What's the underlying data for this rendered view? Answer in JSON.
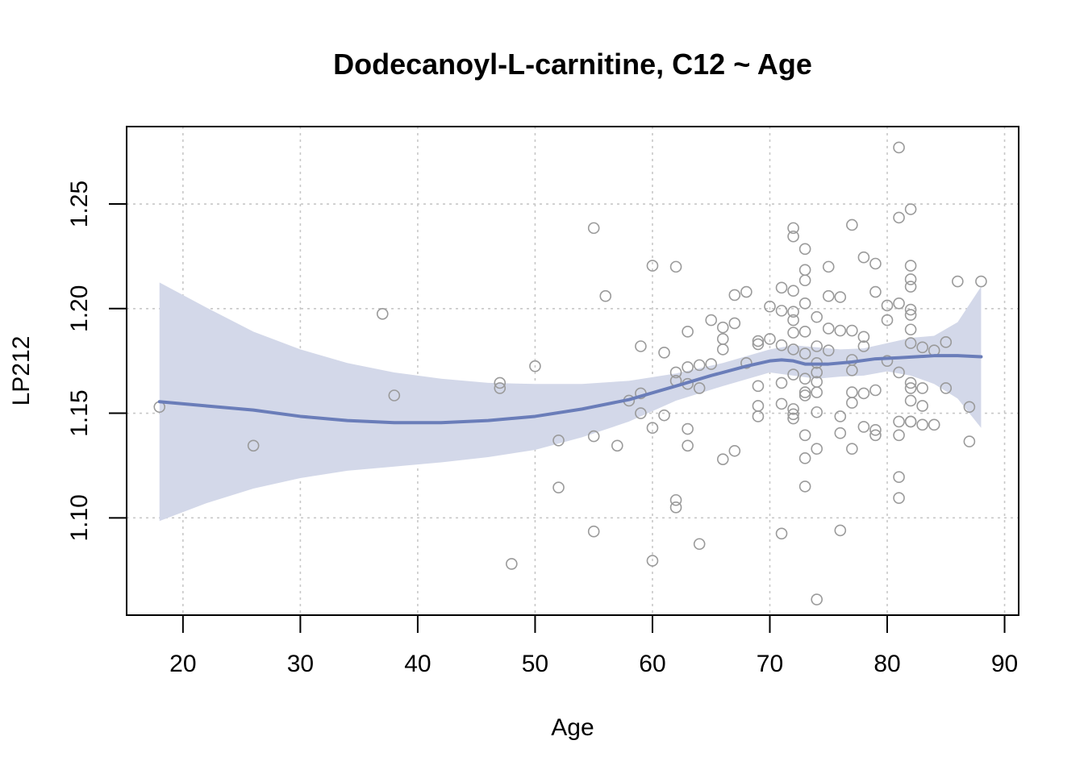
{
  "chart_data": {
    "type": "scatter",
    "title": "Dodecanoyl-L-carnitine, C12 ~ Age",
    "xlabel": "Age",
    "ylabel": "LP212",
    "xlim": [
      15.2,
      91.2
    ],
    "ylim": [
      1.0535,
      1.287
    ],
    "xticks": [
      20,
      30,
      40,
      50,
      60,
      70,
      80,
      90
    ],
    "yticks": [
      1.1,
      1.15,
      1.2,
      1.25
    ],
    "ytick_labels": [
      "1.10",
      "1.15",
      "1.20",
      "1.25"
    ],
    "grid": true,
    "legend": "none",
    "colors": {
      "points": "#9a9a9a",
      "fit_line": "#6a7db9",
      "confidence_band": "#d3d8e9",
      "grid": "#c8c8c8",
      "axis": "#000000"
    },
    "series": [
      {
        "type": "points",
        "points": [
          [
            18,
            1.153
          ],
          [
            26,
            1.1345
          ],
          [
            37,
            1.1975
          ],
          [
            38,
            1.1585
          ],
          [
            47,
            1.1645
          ],
          [
            47,
            1.162
          ],
          [
            48,
            1.078
          ],
          [
            50,
            1.1725
          ],
          [
            52,
            1.137
          ],
          [
            52,
            1.1145
          ],
          [
            55,
            1.2385
          ],
          [
            55,
            1.139
          ],
          [
            55,
            1.0935
          ],
          [
            56,
            1.206
          ],
          [
            57,
            1.1345
          ],
          [
            58,
            1.156
          ],
          [
            59,
            1.182
          ],
          [
            59,
            1.1595
          ],
          [
            59,
            1.15
          ],
          [
            60,
            1.2205
          ],
          [
            60,
            1.143
          ],
          [
            60,
            1.0795
          ],
          [
            61,
            1.179
          ],
          [
            61,
            1.149
          ],
          [
            62,
            1.22
          ],
          [
            62,
            1.1695
          ],
          [
            62,
            1.1655
          ],
          [
            62,
            1.1085
          ],
          [
            62,
            1.105
          ],
          [
            63,
            1.189
          ],
          [
            63,
            1.172
          ],
          [
            63,
            1.164
          ],
          [
            63,
            1.1425
          ],
          [
            63,
            1.1345
          ],
          [
            64,
            1.173
          ],
          [
            64,
            1.162
          ],
          [
            64,
            1.0875
          ],
          [
            65,
            1.1945
          ],
          [
            65,
            1.1735
          ],
          [
            66,
            1.191
          ],
          [
            66,
            1.1855
          ],
          [
            66,
            1.1805
          ],
          [
            66,
            1.128
          ],
          [
            67,
            1.2065
          ],
          [
            67,
            1.193
          ],
          [
            67,
            1.132
          ],
          [
            68,
            1.208
          ],
          [
            68,
            1.174
          ],
          [
            69,
            1.1845
          ],
          [
            69,
            1.183
          ],
          [
            69,
            1.163
          ],
          [
            69,
            1.1535
          ],
          [
            69,
            1.1485
          ],
          [
            70,
            1.201
          ],
          [
            70,
            1.1855
          ],
          [
            71,
            1.21
          ],
          [
            71,
            1.199
          ],
          [
            71,
            1.1825
          ],
          [
            71,
            1.1645
          ],
          [
            71,
            1.1545
          ],
          [
            71,
            1.0925
          ],
          [
            72,
            1.2385
          ],
          [
            72,
            1.2345
          ],
          [
            72,
            1.2085
          ],
          [
            72,
            1.1985
          ],
          [
            72,
            1.1945
          ],
          [
            72,
            1.1885
          ],
          [
            72,
            1.1805
          ],
          [
            72,
            1.1685
          ],
          [
            72,
            1.152
          ],
          [
            72,
            1.1495
          ],
          [
            72,
            1.1475
          ],
          [
            73,
            1.2285
          ],
          [
            73,
            1.2185
          ],
          [
            73,
            1.2135
          ],
          [
            73,
            1.2025
          ],
          [
            73,
            1.189
          ],
          [
            73,
            1.1785
          ],
          [
            73,
            1.1665
          ],
          [
            73,
            1.16
          ],
          [
            73,
            1.1585
          ],
          [
            73,
            1.1395
          ],
          [
            73,
            1.1285
          ],
          [
            73,
            1.115
          ],
          [
            74,
            1.196
          ],
          [
            74,
            1.182
          ],
          [
            74,
            1.174
          ],
          [
            74,
            1.1695
          ],
          [
            74,
            1.165
          ],
          [
            74,
            1.16
          ],
          [
            74,
            1.1505
          ],
          [
            74,
            1.133
          ],
          [
            74,
            1.061
          ],
          [
            75,
            1.22
          ],
          [
            75,
            1.206
          ],
          [
            75,
            1.1905
          ],
          [
            75,
            1.18
          ],
          [
            76,
            1.2055
          ],
          [
            76,
            1.1895
          ],
          [
            76,
            1.1485
          ],
          [
            76,
            1.1405
          ],
          [
            76,
            1.094
          ],
          [
            77,
            1.24
          ],
          [
            77,
            1.1895
          ],
          [
            77,
            1.1755
          ],
          [
            77,
            1.1705
          ],
          [
            77,
            1.16
          ],
          [
            77,
            1.155
          ],
          [
            77,
            1.133
          ],
          [
            78,
            1.2245
          ],
          [
            78,
            1.1865
          ],
          [
            78,
            1.182
          ],
          [
            78,
            1.1595
          ],
          [
            78,
            1.1435
          ],
          [
            79,
            1.2215
          ],
          [
            79,
            1.208
          ],
          [
            79,
            1.161
          ],
          [
            79,
            1.142
          ],
          [
            79,
            1.1395
          ],
          [
            80,
            1.2015
          ],
          [
            80,
            1.1945
          ],
          [
            80,
            1.175
          ],
          [
            81,
            1.277
          ],
          [
            81,
            1.2435
          ],
          [
            81,
            1.2025
          ],
          [
            81,
            1.1695
          ],
          [
            81,
            1.146
          ],
          [
            81,
            1.1395
          ],
          [
            81,
            1.1195
          ],
          [
            81,
            1.1095
          ],
          [
            82,
            1.2475
          ],
          [
            82,
            1.2205
          ],
          [
            82,
            1.214
          ],
          [
            82,
            1.2105
          ],
          [
            82,
            1.1995
          ],
          [
            82,
            1.197
          ],
          [
            82,
            1.19
          ],
          [
            82,
            1.1835
          ],
          [
            82,
            1.1645
          ],
          [
            82,
            1.162
          ],
          [
            82,
            1.156
          ],
          [
            82,
            1.146
          ],
          [
            82,
            1.146
          ],
          [
            83,
            1.1815
          ],
          [
            83,
            1.162
          ],
          [
            83,
            1.1535
          ],
          [
            83,
            1.1445
          ],
          [
            84,
            1.18
          ],
          [
            84,
            1.1445
          ],
          [
            85,
            1.184
          ],
          [
            85,
            1.162
          ],
          [
            86,
            1.213
          ],
          [
            87,
            1.153
          ],
          [
            87,
            1.1365
          ],
          [
            88,
            1.213
          ]
        ]
      },
      {
        "type": "smooth-line",
        "points": [
          [
            18,
            1.1555
          ],
          [
            22,
            1.1535
          ],
          [
            26,
            1.1515
          ],
          [
            30,
            1.1485
          ],
          [
            34,
            1.1465
          ],
          [
            38,
            1.1455
          ],
          [
            42,
            1.1455
          ],
          [
            46,
            1.1465
          ],
          [
            50,
            1.1485
          ],
          [
            54,
            1.152
          ],
          [
            58,
            1.1565
          ],
          [
            62,
            1.163
          ],
          [
            65,
            1.168
          ],
          [
            68,
            1.1725
          ],
          [
            70,
            1.175
          ],
          [
            71,
            1.1755
          ],
          [
            72,
            1.175
          ],
          [
            73,
            1.1735
          ],
          [
            75,
            1.1735
          ],
          [
            77,
            1.1745
          ],
          [
            79,
            1.176
          ],
          [
            81,
            1.1765
          ],
          [
            84,
            1.1775
          ],
          [
            86,
            1.1775
          ],
          [
            88,
            1.177
          ]
        ]
      },
      {
        "type": "confidence-band",
        "upper": [
          [
            18,
            1.2125
          ],
          [
            22,
            1.2005
          ],
          [
            26,
            1.189
          ],
          [
            30,
            1.1805
          ],
          [
            34,
            1.174
          ],
          [
            38,
            1.1695
          ],
          [
            42,
            1.1665
          ],
          [
            46,
            1.1645
          ],
          [
            50,
            1.164
          ],
          [
            54,
            1.164
          ],
          [
            58,
            1.1655
          ],
          [
            62,
            1.169
          ],
          [
            66,
            1.174
          ],
          [
            70,
            1.1805
          ],
          [
            72,
            1.1825
          ],
          [
            74,
            1.1815
          ],
          [
            76,
            1.1805
          ],
          [
            78,
            1.181
          ],
          [
            80,
            1.1835
          ],
          [
            82,
            1.186
          ],
          [
            84,
            1.187
          ],
          [
            86,
            1.1935
          ],
          [
            88,
            1.2105
          ]
        ],
        "lower": [
          [
            18,
            1.0985
          ],
          [
            22,
            1.107
          ],
          [
            26,
            1.114
          ],
          [
            30,
            1.119
          ],
          [
            34,
            1.1225
          ],
          [
            38,
            1.1245
          ],
          [
            42,
            1.1265
          ],
          [
            46,
            1.129
          ],
          [
            50,
            1.1325
          ],
          [
            54,
            1.1385
          ],
          [
            58,
            1.146
          ],
          [
            62,
            1.156
          ],
          [
            66,
            1.163
          ],
          [
            70,
            1.1695
          ],
          [
            72,
            1.168
          ],
          [
            74,
            1.1665
          ],
          [
            76,
            1.1675
          ],
          [
            78,
            1.168
          ],
          [
            80,
            1.17
          ],
          [
            82,
            1.168
          ],
          [
            84,
            1.164
          ],
          [
            86,
            1.157
          ],
          [
            88,
            1.143
          ]
        ]
      }
    ]
  }
}
